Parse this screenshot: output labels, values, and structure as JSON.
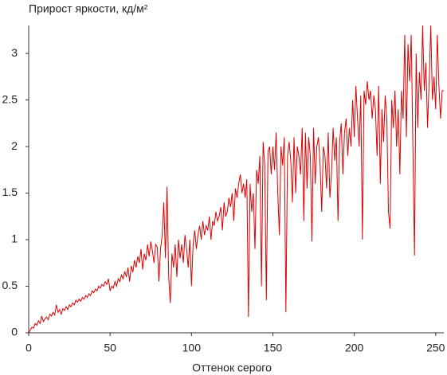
{
  "chart_data": {
    "type": "line",
    "title": "Прирост яркости, кд/м²",
    "x_label": "Оттенок серого",
    "color": "#dd0000",
    "xlim": [
      0,
      255
    ],
    "ylim": [
      0,
      3.3
    ],
    "xticks": [
      0,
      50,
      100,
      150,
      200,
      250
    ],
    "yticks": [
      0,
      0.5,
      1,
      1.5,
      2,
      2.5,
      3
    ],
    "x": [
      0,
      1,
      2,
      3,
      4,
      5,
      6,
      7,
      8,
      9,
      10,
      11,
      12,
      13,
      14,
      15,
      16,
      17,
      18,
      19,
      20,
      21,
      22,
      23,
      24,
      25,
      26,
      27,
      28,
      29,
      30,
      31,
      32,
      33,
      34,
      35,
      36,
      37,
      38,
      39,
      40,
      41,
      42,
      43,
      44,
      45,
      46,
      47,
      48,
      49,
      50,
      51,
      52,
      53,
      54,
      55,
      56,
      57,
      58,
      59,
      60,
      61,
      62,
      63,
      64,
      65,
      66,
      67,
      68,
      69,
      70,
      71,
      72,
      73,
      74,
      75,
      76,
      77,
      78,
      79,
      80,
      81,
      82,
      83,
      84,
      85,
      86,
      87,
      88,
      89,
      90,
      91,
      92,
      93,
      94,
      95,
      96,
      97,
      98,
      99,
      100,
      101,
      102,
      103,
      104,
      105,
      106,
      107,
      108,
      109,
      110,
      111,
      112,
      113,
      114,
      115,
      116,
      117,
      118,
      119,
      120,
      121,
      122,
      123,
      124,
      125,
      126,
      127,
      128,
      129,
      130,
      131,
      132,
      133,
      134,
      135,
      136,
      137,
      138,
      139,
      140,
      141,
      142,
      143,
      144,
      145,
      146,
      147,
      148,
      149,
      150,
      151,
      152,
      153,
      154,
      155,
      156,
      157,
      158,
      159,
      160,
      161,
      162,
      163,
      164,
      165,
      166,
      167,
      168,
      169,
      170,
      171,
      172,
      173,
      174,
      175,
      176,
      177,
      178,
      179,
      180,
      181,
      182,
      183,
      184,
      185,
      186,
      187,
      188,
      189,
      190,
      191,
      192,
      193,
      194,
      195,
      196,
      197,
      198,
      199,
      200,
      201,
      202,
      203,
      204,
      205,
      206,
      207,
      208,
      209,
      210,
      211,
      212,
      213,
      214,
      215,
      216,
      217,
      218,
      219,
      220,
      221,
      222,
      223,
      224,
      225,
      226,
      227,
      228,
      229,
      230,
      231,
      232,
      233,
      234,
      235,
      236,
      237,
      238,
      239,
      240,
      241,
      242,
      243,
      244,
      245,
      246,
      247,
      248,
      249,
      250,
      251,
      252,
      253,
      254,
      255
    ],
    "values": [
      0,
      0.03,
      0.06,
      0.05,
      0.1,
      0.08,
      0.13,
      0.1,
      0.18,
      0.12,
      0.15,
      0.17,
      0.14,
      0.2,
      0.18,
      0.22,
      0.19,
      0.3,
      0.22,
      0.25,
      0.2,
      0.26,
      0.24,
      0.28,
      0.25,
      0.3,
      0.28,
      0.32,
      0.3,
      0.35,
      0.33,
      0.36,
      0.34,
      0.38,
      0.36,
      0.4,
      0.38,
      0.42,
      0.4,
      0.45,
      0.43,
      0.47,
      0.45,
      0.5,
      0.48,
      0.52,
      0.5,
      0.55,
      0.52,
      0.58,
      0.45,
      0.5,
      0.48,
      0.55,
      0.5,
      0.58,
      0.55,
      0.62,
      0.58,
      0.66,
      0.6,
      0.7,
      0.55,
      0.72,
      0.65,
      0.78,
      0.7,
      0.82,
      0.75,
      0.9,
      0.68,
      0.85,
      0.78,
      0.95,
      0.82,
      0.98,
      0.88,
      0.75,
      0.95,
      0.92,
      0.55,
      0.9,
      1.05,
      1.4,
      0.8,
      1.57,
      0.6,
      0.32,
      0.85,
      0.7,
      0.95,
      0.6,
      1.0,
      0.8,
      0.95,
      0.75,
      1.05,
      0.9,
      0.7,
      1.0,
      0.5,
      0.95,
      1.1,
      0.9,
      1.05,
      1.15,
      1.0,
      1.2,
      1.05,
      1.15,
      1.1,
      1.25,
      1.0,
      1.2,
      1.15,
      1.3,
      1.2,
      1.25,
      1.35,
      1.1,
      1.4,
      1.25,
      1.3,
      1.45,
      1.35,
      1.5,
      1.2,
      1.55,
      1.45,
      1.6,
      1.7,
      1.5,
      1.6,
      1.45,
      1.65,
      0.17,
      1.6,
      1.3,
      1.5,
      0.9,
      1.75,
      1.6,
      1.9,
      0.5,
      2.05,
      1.8,
      0.35,
      1.95,
      2.0,
      1.7,
      2.0,
      1.75,
      2.15,
      1.5,
      1.05,
      2.0,
      1.8,
      2.1,
      0.22,
      1.9,
      2.05,
      1.85,
      1.4,
      2.1,
      1.5,
      2.0,
      1.9,
      1.7,
      2.2,
      1.2,
      2.15,
      1.55,
      2.1,
      1.9,
      0.98,
      2.2,
      1.6,
      2.0,
      2.1,
      1.8,
      1.3,
      2.0,
      1.9,
      1.55,
      2.15,
      1.45,
      1.7,
      2.2,
      1.85,
      2.1,
      1.2,
      2.05,
      2.25,
      1.7,
      2.15,
      2.3,
      1.9,
      2.2,
      2.0,
      2.5,
      2.1,
      2.65,
      2.3,
      2.0,
      2.55,
      1.0,
      2.6,
      2.45,
      2.7,
      2.5,
      2.6,
      2.3,
      2.55,
      2.4,
      1.9,
      2.65,
      1.6,
      2.4,
      2.05,
      2.55,
      2.3,
      1.3,
      1.12,
      2.5,
      2.2,
      2.6,
      2.0,
      2.4,
      1.7,
      2.6,
      2.3,
      3.2,
      2.1,
      3.1,
      2.7,
      3.2,
      2.0,
      0.83,
      3.0,
      2.2,
      2.8,
      2.5,
      3.3,
      2.6,
      2.9,
      2.2,
      2.7,
      3.3,
      2.5,
      2.75,
      2.4,
      3.2,
      2.65,
      2.3,
      2.6,
      2.6
    ]
  }
}
